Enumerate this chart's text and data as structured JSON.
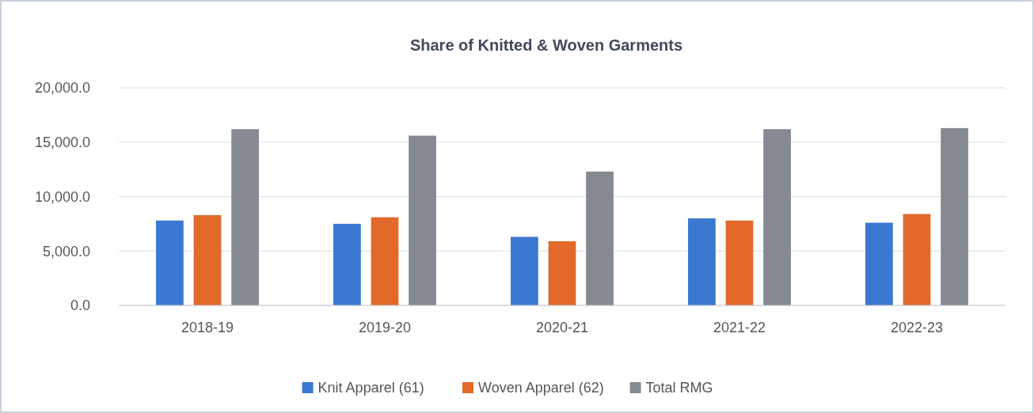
{
  "chart_data": {
    "type": "bar",
    "title": "Share of Knitted & Woven Garments",
    "categories": [
      "2018-19",
      "2019-20",
      "2020-21",
      "2021-22",
      "2022-23"
    ],
    "series": [
      {
        "name": "Knit Apparel (61)",
        "color": "#3b78d1",
        "values": [
          7800,
          7500,
          6300,
          8000,
          7600
        ]
      },
      {
        "name": "Woven Apparel (62)",
        "color": "#e2692a",
        "values": [
          8300,
          8100,
          5900,
          7800,
          8400
        ]
      },
      {
        "name": "Total RMG",
        "color": "#858a92",
        "values": [
          16200,
          15600,
          12300,
          16200,
          16300
        ]
      }
    ],
    "ylim": [
      0,
      20000
    ],
    "yticks": [
      {
        "value": 0,
        "label": "0.0"
      },
      {
        "value": 5000,
        "label": "5,000.0"
      },
      {
        "value": 10000,
        "label": "10,000.0"
      },
      {
        "value": 15000,
        "label": "15,000.0"
      },
      {
        "value": 20000,
        "label": "20,000.0"
      }
    ],
    "grid": "y",
    "legend": "bottom"
  }
}
